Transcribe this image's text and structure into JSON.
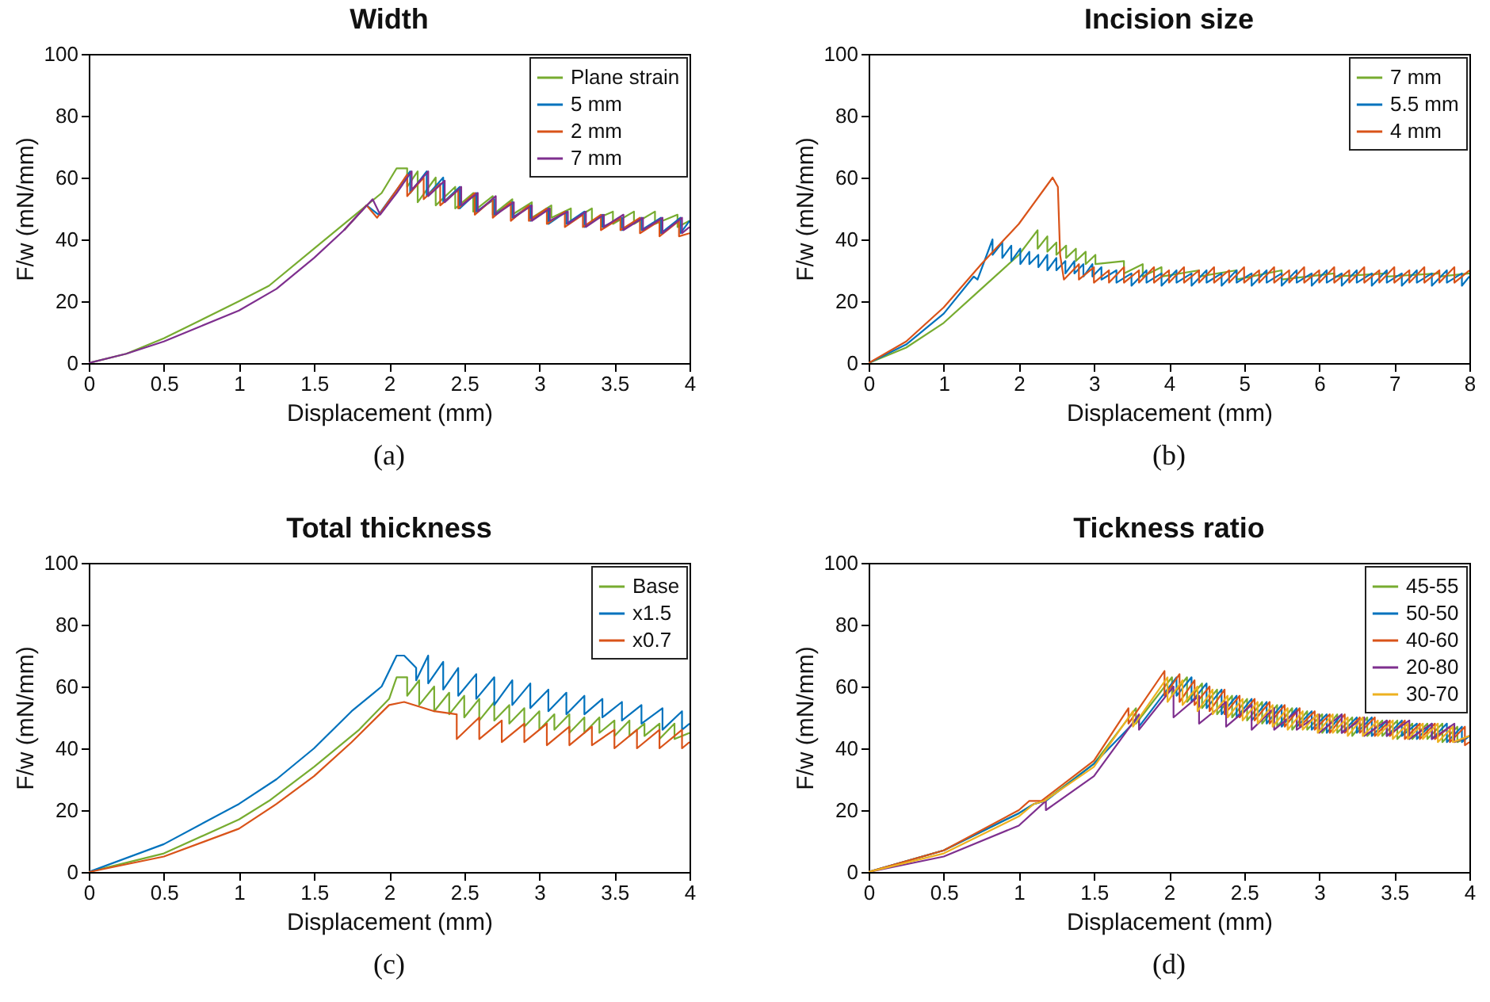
{
  "chart_data": [
    {
      "type": "line",
      "title": "Width",
      "xlabel": "Displacement (mm)",
      "ylabel": "F/w (mN/mm)",
      "xlim": [
        0,
        4
      ],
      "ylim": [
        0,
        100
      ],
      "xticks": [
        0,
        0.5,
        1,
        1.5,
        2,
        2.5,
        3,
        3.5,
        4
      ],
      "yticks": [
        0,
        20,
        40,
        60,
        80,
        100
      ],
      "legend": "top right",
      "annotations": [
        "(a)"
      ],
      "series": [
        {
          "name": "Plane strain",
          "color": "#77ac30",
          "x": [
            0,
            0.25,
            0.5,
            0.75,
            1,
            1.2,
            1.5,
            1.8,
            1.95,
            2.05,
            2.12,
            2.12,
            2.19,
            2.19,
            2.31,
            2.31,
            2.44,
            2.44,
            2.56,
            2.56,
            2.69,
            2.69,
            2.82,
            2.82,
            2.95,
            2.95,
            3.08,
            3.08,
            3.21,
            3.21,
            3.35,
            3.35,
            3.49,
            3.49,
            3.63,
            3.63,
            3.77,
            3.77,
            3.92,
            3.92,
            4
          ],
          "values": [
            0,
            3,
            8,
            14,
            20,
            25,
            37,
            49,
            55,
            63,
            63,
            57,
            62,
            52,
            60,
            51,
            57,
            50,
            55,
            49,
            54,
            48,
            53,
            48,
            52,
            47,
            51,
            47,
            50,
            46,
            50,
            46,
            49,
            45,
            49,
            45,
            49,
            45,
            48,
            44,
            46
          ]
        },
        {
          "name": "5 mm",
          "color": "#0072bd",
          "x": [
            1.7,
            1.85,
            1.93,
            2.05,
            2.14,
            2.14,
            2.25,
            2.25,
            2.36,
            2.36,
            2.47,
            2.47,
            2.58,
            2.58,
            2.7,
            2.7,
            2.82,
            2.82,
            2.94,
            2.94,
            3.06,
            3.06,
            3.18,
            3.18,
            3.3,
            3.3,
            3.42,
            3.42,
            3.55,
            3.55,
            3.68,
            3.68,
            3.81,
            3.81,
            3.94,
            3.94,
            4
          ],
          "values": [
            43,
            51,
            48,
            56,
            62,
            55,
            62,
            54,
            60,
            52,
            57,
            50,
            55,
            49,
            53,
            48,
            52,
            47,
            51,
            46,
            50,
            45,
            49,
            45,
            49,
            44,
            48,
            44,
            47,
            43,
            47,
            43,
            47,
            42,
            47,
            42,
            46
          ]
        },
        {
          "name": "2 mm",
          "color": "#d95319",
          "x": [
            1.7,
            1.85,
            1.92,
            2.05,
            2.12,
            2.12,
            2.23,
            2.23,
            2.34,
            2.34,
            2.46,
            2.46,
            2.57,
            2.57,
            2.69,
            2.69,
            2.81,
            2.81,
            2.93,
            2.93,
            3.05,
            3.05,
            3.17,
            3.17,
            3.29,
            3.29,
            3.41,
            3.41,
            3.54,
            3.54,
            3.67,
            3.67,
            3.8,
            3.8,
            3.93,
            3.93,
            4
          ],
          "values": [
            43,
            51,
            47,
            56,
            61,
            54,
            60,
            53,
            58,
            51,
            56,
            50,
            55,
            48,
            53,
            47,
            52,
            46,
            51,
            46,
            50,
            45,
            49,
            44,
            48,
            44,
            48,
            43,
            47,
            43,
            47,
            42,
            46,
            41,
            46,
            41,
            42
          ]
        },
        {
          "name": "7 mm",
          "color": "#7e2f8e",
          "x": [
            0,
            0.25,
            0.5,
            0.75,
            1,
            1.25,
            1.5,
            1.7,
            1.89,
            1.94,
            2.05,
            2.15,
            2.15,
            2.26,
            2.26,
            2.37,
            2.37,
            2.48,
            2.48,
            2.59,
            2.59,
            2.71,
            2.71,
            2.83,
            2.83,
            2.95,
            2.95,
            3.07,
            3.07,
            3.19,
            3.19,
            3.31,
            3.31,
            3.43,
            3.43,
            3.56,
            3.56,
            3.69,
            3.69,
            3.82,
            3.82,
            3.95,
            3.95,
            4
          ],
          "values": [
            0,
            3,
            7,
            12,
            17,
            24,
            34,
            43,
            53,
            48,
            55,
            62,
            56,
            62,
            54,
            59,
            52,
            57,
            51,
            55,
            49,
            54,
            48,
            52,
            47,
            51,
            46,
            50,
            46,
            49,
            45,
            49,
            44,
            48,
            44,
            48,
            43,
            47,
            43,
            47,
            42,
            47,
            42,
            44
          ]
        }
      ]
    },
    {
      "type": "line",
      "title": "Incision size",
      "xlabel": "Displacement (mm)",
      "ylabel": "F/w (mN/mm)",
      "xlim": [
        0,
        8
      ],
      "ylim": [
        0,
        100
      ],
      "xticks": [
        0,
        1,
        2,
        3,
        4,
        5,
        6,
        7,
        8
      ],
      "yticks": [
        0,
        20,
        40,
        60,
        80,
        100
      ],
      "legend": "top right",
      "annotations": [
        "(b)"
      ],
      "series": [
        {
          "name": "7 mm",
          "color": "#77ac30",
          "x": [
            0,
            0.5,
            1,
            1.5,
            2,
            2.25,
            2.25,
            2.38,
            2.38,
            2.5,
            2.5,
            2.63,
            2.63,
            2.76,
            2.76,
            2.89,
            2.89,
            3.02,
            3.02,
            3.4,
            3.4,
            3.65,
            3.65,
            3.9,
            3.9,
            4.4,
            4.4,
            4.9,
            4.9,
            5.5,
            5.5,
            6.2,
            6.2,
            6.9,
            6.9,
            7.6,
            7.6,
            8
          ],
          "values": [
            0,
            5,
            13,
            24,
            35,
            43,
            37,
            41,
            36,
            39,
            35,
            38,
            34,
            37,
            33,
            36,
            32,
            35,
            32,
            33,
            29,
            32,
            28,
            31,
            28,
            30,
            28,
            30,
            27,
            30,
            27,
            29,
            28,
            29,
            28,
            29,
            28,
            29
          ]
        },
        {
          "name": "5.5 mm",
          "color": "#0072bd",
          "x": [
            0,
            0.5,
            1,
            1.4,
            1.45,
            1.65,
            1.65,
            1.78,
            1.78,
            1.9,
            1.9,
            2.02,
            2.02,
            2.14,
            2.14,
            2.26,
            2.26,
            2.38,
            2.38,
            2.5,
            2.5,
            2.62,
            2.62,
            2.74,
            2.74,
            2.86,
            2.86,
            2.98,
            2.98,
            3.1,
            3.1,
            3.3,
            3.3,
            3.5,
            3.5,
            3.7,
            3.7,
            3.9,
            3.9,
            4.1,
            4.1,
            4.3,
            4.3,
            4.5,
            4.5,
            4.7,
            4.7,
            4.9,
            4.9,
            5.1,
            5.1,
            5.3,
            5.3,
            5.5,
            5.5,
            5.7,
            5.7,
            5.9,
            5.9,
            6.1,
            6.1,
            6.3,
            6.3,
            6.5,
            6.5,
            6.7,
            6.7,
            6.9,
            6.9,
            7.1,
            7.1,
            7.3,
            7.3,
            7.5,
            7.5,
            7.7,
            7.7,
            7.9,
            7.9,
            8
          ],
          "values": [
            0,
            6,
            16,
            28,
            27,
            40,
            35,
            39,
            34,
            38,
            33,
            37,
            32,
            36,
            32,
            35,
            31,
            35,
            30,
            34,
            30,
            33,
            29,
            33,
            29,
            32,
            28,
            32,
            28,
            31,
            27,
            30,
            26,
            29,
            25,
            30,
            26,
            29,
            25,
            30,
            26,
            29,
            25,
            30,
            26,
            29,
            25,
            30,
            26,
            29,
            25,
            30,
            26,
            29,
            25,
            30,
            26,
            29,
            25,
            30,
            26,
            29,
            25,
            30,
            26,
            29,
            25,
            30,
            26,
            29,
            25,
            30,
            26,
            29,
            25,
            30,
            26,
            29,
            25,
            28
          ]
        },
        {
          "name": "4 mm",
          "color": "#d95319",
          "x": [
            0,
            0.5,
            1,
            1.5,
            2,
            2.3,
            2.45,
            2.52,
            2.55,
            2.6,
            2.8,
            2.8,
            3,
            3,
            3.2,
            3.2,
            3.4,
            3.4,
            3.6,
            3.6,
            3.8,
            3.8,
            4,
            4,
            4.2,
            4.2,
            4.4,
            4.4,
            4.6,
            4.6,
            4.8,
            4.8,
            5,
            5,
            5.2,
            5.2,
            5.4,
            5.4,
            5.6,
            5.6,
            5.8,
            5.8,
            6,
            6,
            6.2,
            6.2,
            6.4,
            6.4,
            6.6,
            6.6,
            6.8,
            6.8,
            7,
            7,
            7.2,
            7.2,
            7.4,
            7.4,
            7.6,
            7.6,
            7.8,
            7.8,
            8
          ],
          "values": [
            0,
            7,
            18,
            32,
            45,
            55,
            60,
            57,
            35,
            27,
            32,
            27,
            31,
            26,
            30,
            26,
            31,
            26,
            30,
            26,
            31,
            26,
            30,
            26,
            31,
            26,
            30,
            26,
            31,
            26,
            30,
            26,
            31,
            26,
            30,
            26,
            31,
            26,
            30,
            26,
            31,
            26,
            30,
            26,
            31,
            26,
            30,
            26,
            31,
            26,
            30,
            26,
            31,
            26,
            30,
            26,
            31,
            26,
            30,
            26,
            31,
            26,
            30
          ]
        }
      ]
    },
    {
      "type": "line",
      "title": "Total thickness",
      "xlabel": "Displacement (mm)",
      "ylabel": "F/w (mN/mm)",
      "xlim": [
        0,
        4
      ],
      "ylim": [
        0,
        100
      ],
      "xticks": [
        0,
        0.5,
        1,
        1.5,
        2,
        2.5,
        3,
        3.5,
        4
      ],
      "yticks": [
        0,
        20,
        40,
        60,
        80,
        100
      ],
      "legend": "top right",
      "annotations": [
        "(c)"
      ],
      "series": [
        {
          "name": "Base",
          "color": "#77ac30",
          "x": [
            0,
            0.5,
            1,
            1.2,
            1.5,
            1.8,
            2,
            2.05,
            2.12,
            2.12,
            2.2,
            2.2,
            2.3,
            2.3,
            2.4,
            2.4,
            2.5,
            2.5,
            2.6,
            2.6,
            2.7,
            2.7,
            2.8,
            2.8,
            2.9,
            2.9,
            3,
            3,
            3.1,
            3.1,
            3.2,
            3.2,
            3.3,
            3.3,
            3.4,
            3.4,
            3.5,
            3.5,
            3.6,
            3.6,
            3.7,
            3.7,
            3.8,
            3.8,
            3.9,
            3.9,
            4
          ],
          "values": [
            0,
            6,
            17,
            23,
            34,
            46,
            56,
            63,
            63,
            57,
            62,
            54,
            60,
            52,
            58,
            51,
            57,
            50,
            56,
            49,
            55,
            49,
            54,
            48,
            53,
            47,
            52,
            46,
            51,
            46,
            51,
            45,
            50,
            45,
            50,
            45,
            49,
            44,
            49,
            44,
            48,
            44,
            48,
            43,
            48,
            43,
            45
          ]
        },
        {
          "name": "x1.5",
          "color": "#0072bd",
          "x": [
            0,
            0.5,
            1,
            1.25,
            1.5,
            1.75,
            1.9,
            1.95,
            2.05,
            2.1,
            2.18,
            2.18,
            2.26,
            2.26,
            2.36,
            2.36,
            2.46,
            2.46,
            2.58,
            2.58,
            2.7,
            2.7,
            2.82,
            2.82,
            2.94,
            2.94,
            3.06,
            3.06,
            3.18,
            3.18,
            3.3,
            3.3,
            3.42,
            3.42,
            3.55,
            3.55,
            3.68,
            3.68,
            3.82,
            3.82,
            3.95,
            3.95,
            4
          ],
          "values": [
            0,
            9,
            22,
            30,
            40,
            52,
            58,
            60,
            70,
            70,
            66,
            62,
            70,
            61,
            68,
            59,
            66,
            57,
            64,
            56,
            63,
            54,
            62,
            54,
            61,
            53,
            59,
            52,
            58,
            51,
            57,
            51,
            56,
            50,
            55,
            49,
            54,
            48,
            53,
            46,
            52,
            46,
            48
          ]
        },
        {
          "name": "x0.7",
          "color": "#d95319",
          "x": [
            0,
            0.5,
            1,
            1.25,
            1.5,
            1.75,
            2,
            2.1,
            2.3,
            2.45,
            2.45,
            2.6,
            2.6,
            2.75,
            2.75,
            2.9,
            2.9,
            3.05,
            3.05,
            3.2,
            3.2,
            3.35,
            3.35,
            3.5,
            3.5,
            3.65,
            3.65,
            3.8,
            3.8,
            3.95,
            3.95,
            4
          ],
          "values": [
            0,
            5,
            14,
            22,
            31,
            42,
            54,
            55,
            52,
            51,
            43,
            50,
            43,
            49,
            42,
            48,
            42,
            48,
            41,
            47,
            41,
            47,
            41,
            46,
            40,
            46,
            40,
            46,
            40,
            46,
            40,
            42
          ]
        }
      ]
    },
    {
      "type": "line",
      "title": "Tickness ratio",
      "xlabel": "Displacement (mm)",
      "ylabel": "F/w (mN/mm)",
      "xlim": [
        0,
        4
      ],
      "ylim": [
        0,
        100
      ],
      "xticks": [
        0,
        0.5,
        1,
        1.5,
        2,
        2.5,
        3,
        3.5,
        4
      ],
      "yticks": [
        0,
        20,
        40,
        60,
        80,
        100
      ],
      "legend": "top right",
      "annotations": [
        "(d)"
      ],
      "series": [
        {
          "name": "45-55",
          "color": "#77ac30",
          "x": [
            0,
            0.5,
            1,
            1.1,
            1.17,
            1.5,
            1.78,
            1.78,
            2.02,
            2.02,
            2.12,
            2.12,
            2.22,
            2.22,
            2.32,
            2.32,
            2.42,
            2.42,
            2.52,
            2.52,
            2.62,
            2.62,
            2.72,
            2.72,
            2.82,
            2.82,
            2.92,
            2.92,
            3.02,
            3.02,
            3.12,
            3.12,
            3.22,
            3.22,
            3.32,
            3.32,
            3.42,
            3.42,
            3.52,
            3.52,
            3.62,
            3.62,
            3.72,
            3.72,
            3.82,
            3.82,
            3.92,
            3.92,
            4
          ],
          "values": [
            0,
            7,
            19,
            22,
            23,
            35,
            53,
            48,
            63,
            57,
            63,
            55,
            61,
            53,
            59,
            51,
            57,
            50,
            56,
            49,
            55,
            48,
            54,
            47,
            53,
            46,
            52,
            46,
            51,
            45,
            51,
            45,
            50,
            44,
            50,
            44,
            49,
            44,
            49,
            43,
            48,
            43,
            48,
            43,
            48,
            42,
            47,
            42,
            44
          ]
        },
        {
          "name": "50-50",
          "color": "#0072bd",
          "x": [
            0,
            0.5,
            1,
            1.1,
            1.18,
            1.5,
            1.8,
            1.8,
            2.05,
            2.05,
            2.15,
            2.15,
            2.25,
            2.25,
            2.35,
            2.35,
            2.45,
            2.45,
            2.55,
            2.55,
            2.65,
            2.65,
            2.75,
            2.75,
            2.85,
            2.85,
            2.95,
            2.95,
            3.05,
            3.05,
            3.15,
            3.15,
            3.25,
            3.25,
            3.35,
            3.35,
            3.45,
            3.45,
            3.55,
            3.55,
            3.65,
            3.65,
            3.75,
            3.75,
            3.85,
            3.85,
            3.95,
            3.95,
            4
          ],
          "values": [
            0,
            7,
            19,
            22,
            23,
            35,
            50,
            47,
            63,
            57,
            63,
            55,
            61,
            53,
            59,
            51,
            57,
            50,
            56,
            49,
            55,
            48,
            54,
            47,
            53,
            47,
            52,
            46,
            51,
            45,
            51,
            45,
            50,
            45,
            50,
            44,
            49,
            44,
            49,
            44,
            48,
            43,
            48,
            43,
            48,
            42,
            47,
            42,
            44
          ]
        },
        {
          "name": "40-60",
          "color": "#d95319",
          "x": [
            0,
            0.5,
            1,
            1.07,
            1.15,
            1.5,
            1.73,
            1.73,
            1.97,
            1.97,
            2.07,
            2.07,
            2.17,
            2.17,
            2.27,
            2.27,
            2.37,
            2.37,
            2.47,
            2.47,
            2.57,
            2.57,
            2.67,
            2.67,
            2.77,
            2.77,
            2.87,
            2.87,
            2.97,
            2.97,
            3.07,
            3.07,
            3.17,
            3.17,
            3.27,
            3.27,
            3.37,
            3.37,
            3.47,
            3.47,
            3.57,
            3.57,
            3.67,
            3.67,
            3.77,
            3.77,
            3.87,
            3.87,
            3.97,
            3.97,
            4
          ],
          "values": [
            0,
            7,
            20,
            23,
            23,
            36,
            53,
            48,
            65,
            57,
            64,
            55,
            62,
            54,
            60,
            52,
            59,
            51,
            57,
            50,
            56,
            49,
            55,
            48,
            54,
            47,
            53,
            47,
            52,
            46,
            51,
            45,
            51,
            45,
            50,
            45,
            50,
            44,
            49,
            44,
            49,
            43,
            48,
            43,
            48,
            43,
            47,
            42,
            47,
            41,
            42
          ]
        },
        {
          "name": "20-80",
          "color": "#7e2f8e",
          "x": [
            0,
            0.5,
            1,
            1.18,
            1.18,
            1.5,
            1.8,
            1.8,
            2.03,
            2.03,
            2.2,
            2.2,
            2.38,
            2.38,
            2.55,
            2.55,
            2.7,
            2.7,
            2.85,
            2.85,
            3,
            3,
            3.15,
            3.15,
            3.3,
            3.3,
            3.45,
            3.45,
            3.6,
            3.6,
            3.75,
            3.75,
            3.9,
            3.9,
            4
          ],
          "values": [
            0,
            5,
            15,
            23,
            20,
            31,
            51,
            46,
            60,
            50,
            57,
            48,
            55,
            47,
            54,
            46,
            53,
            46,
            52,
            46,
            51,
            45,
            51,
            45,
            50,
            44,
            49,
            44,
            49,
            43,
            48,
            43,
            48,
            42,
            44
          ]
        },
        {
          "name": "30-70",
          "color": "#edb120",
          "x": [
            0,
            0.5,
            1,
            1.1,
            1.17,
            1.5,
            1.76,
            1.76,
            1.99,
            1.99,
            2.09,
            2.09,
            2.19,
            2.19,
            2.29,
            2.29,
            2.39,
            2.39,
            2.49,
            2.49,
            2.59,
            2.59,
            2.69,
            2.69,
            2.79,
            2.79,
            2.89,
            2.89,
            2.99,
            2.99,
            3.09,
            3.09,
            3.19,
            3.19,
            3.29,
            3.29,
            3.39,
            3.39,
            3.49,
            3.49,
            3.59,
            3.59,
            3.69,
            3.69,
            3.79,
            3.79,
            3.89,
            3.89,
            4
          ],
          "values": [
            0,
            6,
            18,
            22,
            23,
            34,
            52,
            47,
            63,
            55,
            62,
            54,
            60,
            52,
            59,
            51,
            57,
            50,
            56,
            49,
            55,
            48,
            54,
            47,
            53,
            46,
            52,
            46,
            51,
            45,
            51,
            45,
            50,
            44,
            50,
            44,
            49,
            44,
            49,
            43,
            48,
            43,
            48,
            43,
            48,
            42,
            47,
            42,
            44
          ]
        }
      ]
    }
  ]
}
